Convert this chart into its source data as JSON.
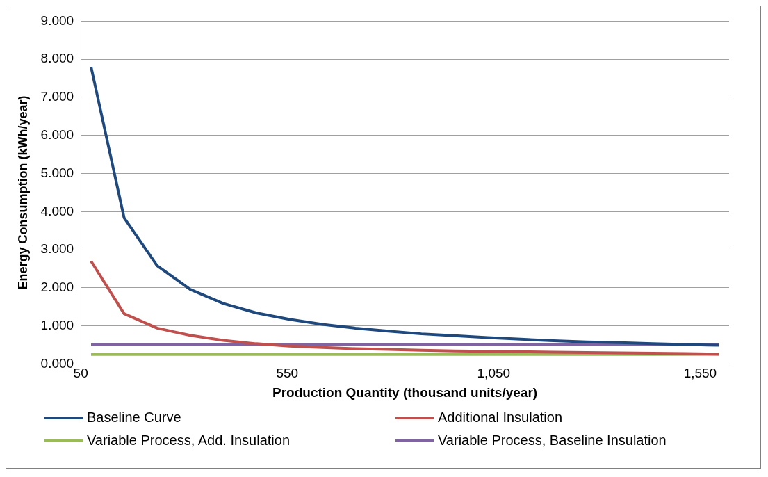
{
  "chart_data": {
    "type": "line",
    "xlabel": "Production Quantity (thousand units/year)",
    "ylabel": "Energy Consumption (kWh/year)",
    "x": [
      75,
      155,
      235,
      315,
      395,
      475,
      555,
      635,
      715,
      795,
      875,
      955,
      1035,
      1115,
      1195,
      1275,
      1355,
      1435,
      1515,
      1595
    ],
    "series": [
      {
        "name": "Baseline Curve",
        "color": "#1f497d",
        "values": [
          7.8,
          3.84,
          2.58,
          1.96,
          1.59,
          1.34,
          1.17,
          1.04,
          0.94,
          0.86,
          0.79,
          0.74,
          0.69,
          0.65,
          0.61,
          0.58,
          0.56,
          0.53,
          0.51,
          0.49
        ]
      },
      {
        "name": "Additional Insulation",
        "color": "#c0504d",
        "values": [
          2.7,
          1.32,
          0.94,
          0.75,
          0.62,
          0.53,
          0.47,
          0.43,
          0.4,
          0.38,
          0.36,
          0.34,
          0.33,
          0.32,
          0.31,
          0.3,
          0.29,
          0.28,
          0.27,
          0.26
        ]
      },
      {
        "name": "Variable Process, Add. Insulation",
        "color": "#9bbb59",
        "values": [
          0.25,
          0.25,
          0.25,
          0.25,
          0.25,
          0.25,
          0.25,
          0.25,
          0.25,
          0.25,
          0.25,
          0.25,
          0.25,
          0.25,
          0.25,
          0.25,
          0.25,
          0.25,
          0.25,
          0.25
        ]
      },
      {
        "name": "Variable Process, Baseline Insulation",
        "color": "#8064a2",
        "values": [
          0.5,
          0.5,
          0.5,
          0.5,
          0.5,
          0.5,
          0.5,
          0.5,
          0.5,
          0.5,
          0.5,
          0.5,
          0.5,
          0.5,
          0.5,
          0.5,
          0.5,
          0.5,
          0.5,
          0.5
        ]
      }
    ],
    "xlim": [
      50,
      1620
    ],
    "xticks": [
      50,
      550,
      {
        "value": 1050,
        "label": "1,050"
      },
      {
        "value": 1550,
        "label": "1,550"
      }
    ],
    "ylim": [
      0,
      9
    ],
    "yticks": [
      {
        "value": 0,
        "label": "0.000"
      },
      {
        "value": 1,
        "label": "1.000"
      },
      {
        "value": 2,
        "label": "2.000"
      },
      {
        "value": 3,
        "label": "3.000"
      },
      {
        "value": 4,
        "label": "4.000"
      },
      {
        "value": 5,
        "label": "5.000"
      },
      {
        "value": 6,
        "label": "6.000"
      },
      {
        "value": 7,
        "label": "7.000"
      },
      {
        "value": 8,
        "label": "8.000"
      },
      {
        "value": 9,
        "label": "9.000"
      }
    ],
    "grid": "y",
    "legend": "bottom",
    "marker": "none",
    "line_style": "solid"
  }
}
